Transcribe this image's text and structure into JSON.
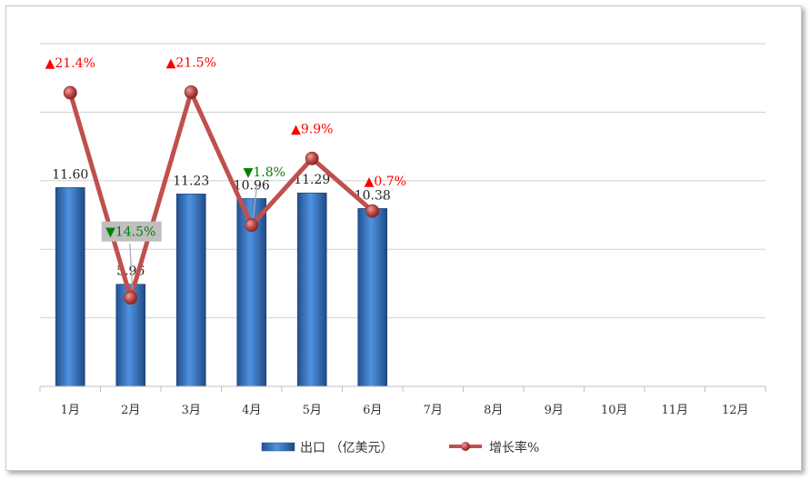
{
  "chart_data": {
    "type": "bar",
    "categories": [
      "1月",
      "2月",
      "3月",
      "4月",
      "5月",
      "6月",
      "7月",
      "8月",
      "9月",
      "10月",
      "11月",
      "12月"
    ],
    "series": [
      {
        "name": "出口 （亿美元）",
        "type": "bar",
        "axis": "left",
        "values": [
          11.6,
          5.96,
          11.23,
          10.96,
          11.29,
          10.38,
          null,
          null,
          null,
          null,
          null,
          null
        ],
        "labels": [
          "11.60",
          "5.96",
          "11.23",
          "10.96",
          "11.29",
          "10.38"
        ],
        "color": "#3d7fd0"
      },
      {
        "name": "增长率%",
        "type": "line",
        "axis": "right",
        "values": [
          21.4,
          -14.5,
          21.5,
          -1.8,
          9.9,
          0.7,
          null,
          null,
          null,
          null,
          null,
          null
        ],
        "labels": [
          "▲21.4%",
          "▼14.5%",
          "▲21.5%",
          "▼1.8%",
          "▲9.9%",
          "▲0.7%"
        ],
        "color": "#c0504d"
      }
    ],
    "y_left_range": [
      0,
      20
    ],
    "y_right_range": [
      -30,
      30
    ],
    "grid": true,
    "legend_position": "bottom",
    "colors": {
      "up": "#ff0000",
      "down": "#008000",
      "gridline": "#d0d0d0"
    }
  }
}
